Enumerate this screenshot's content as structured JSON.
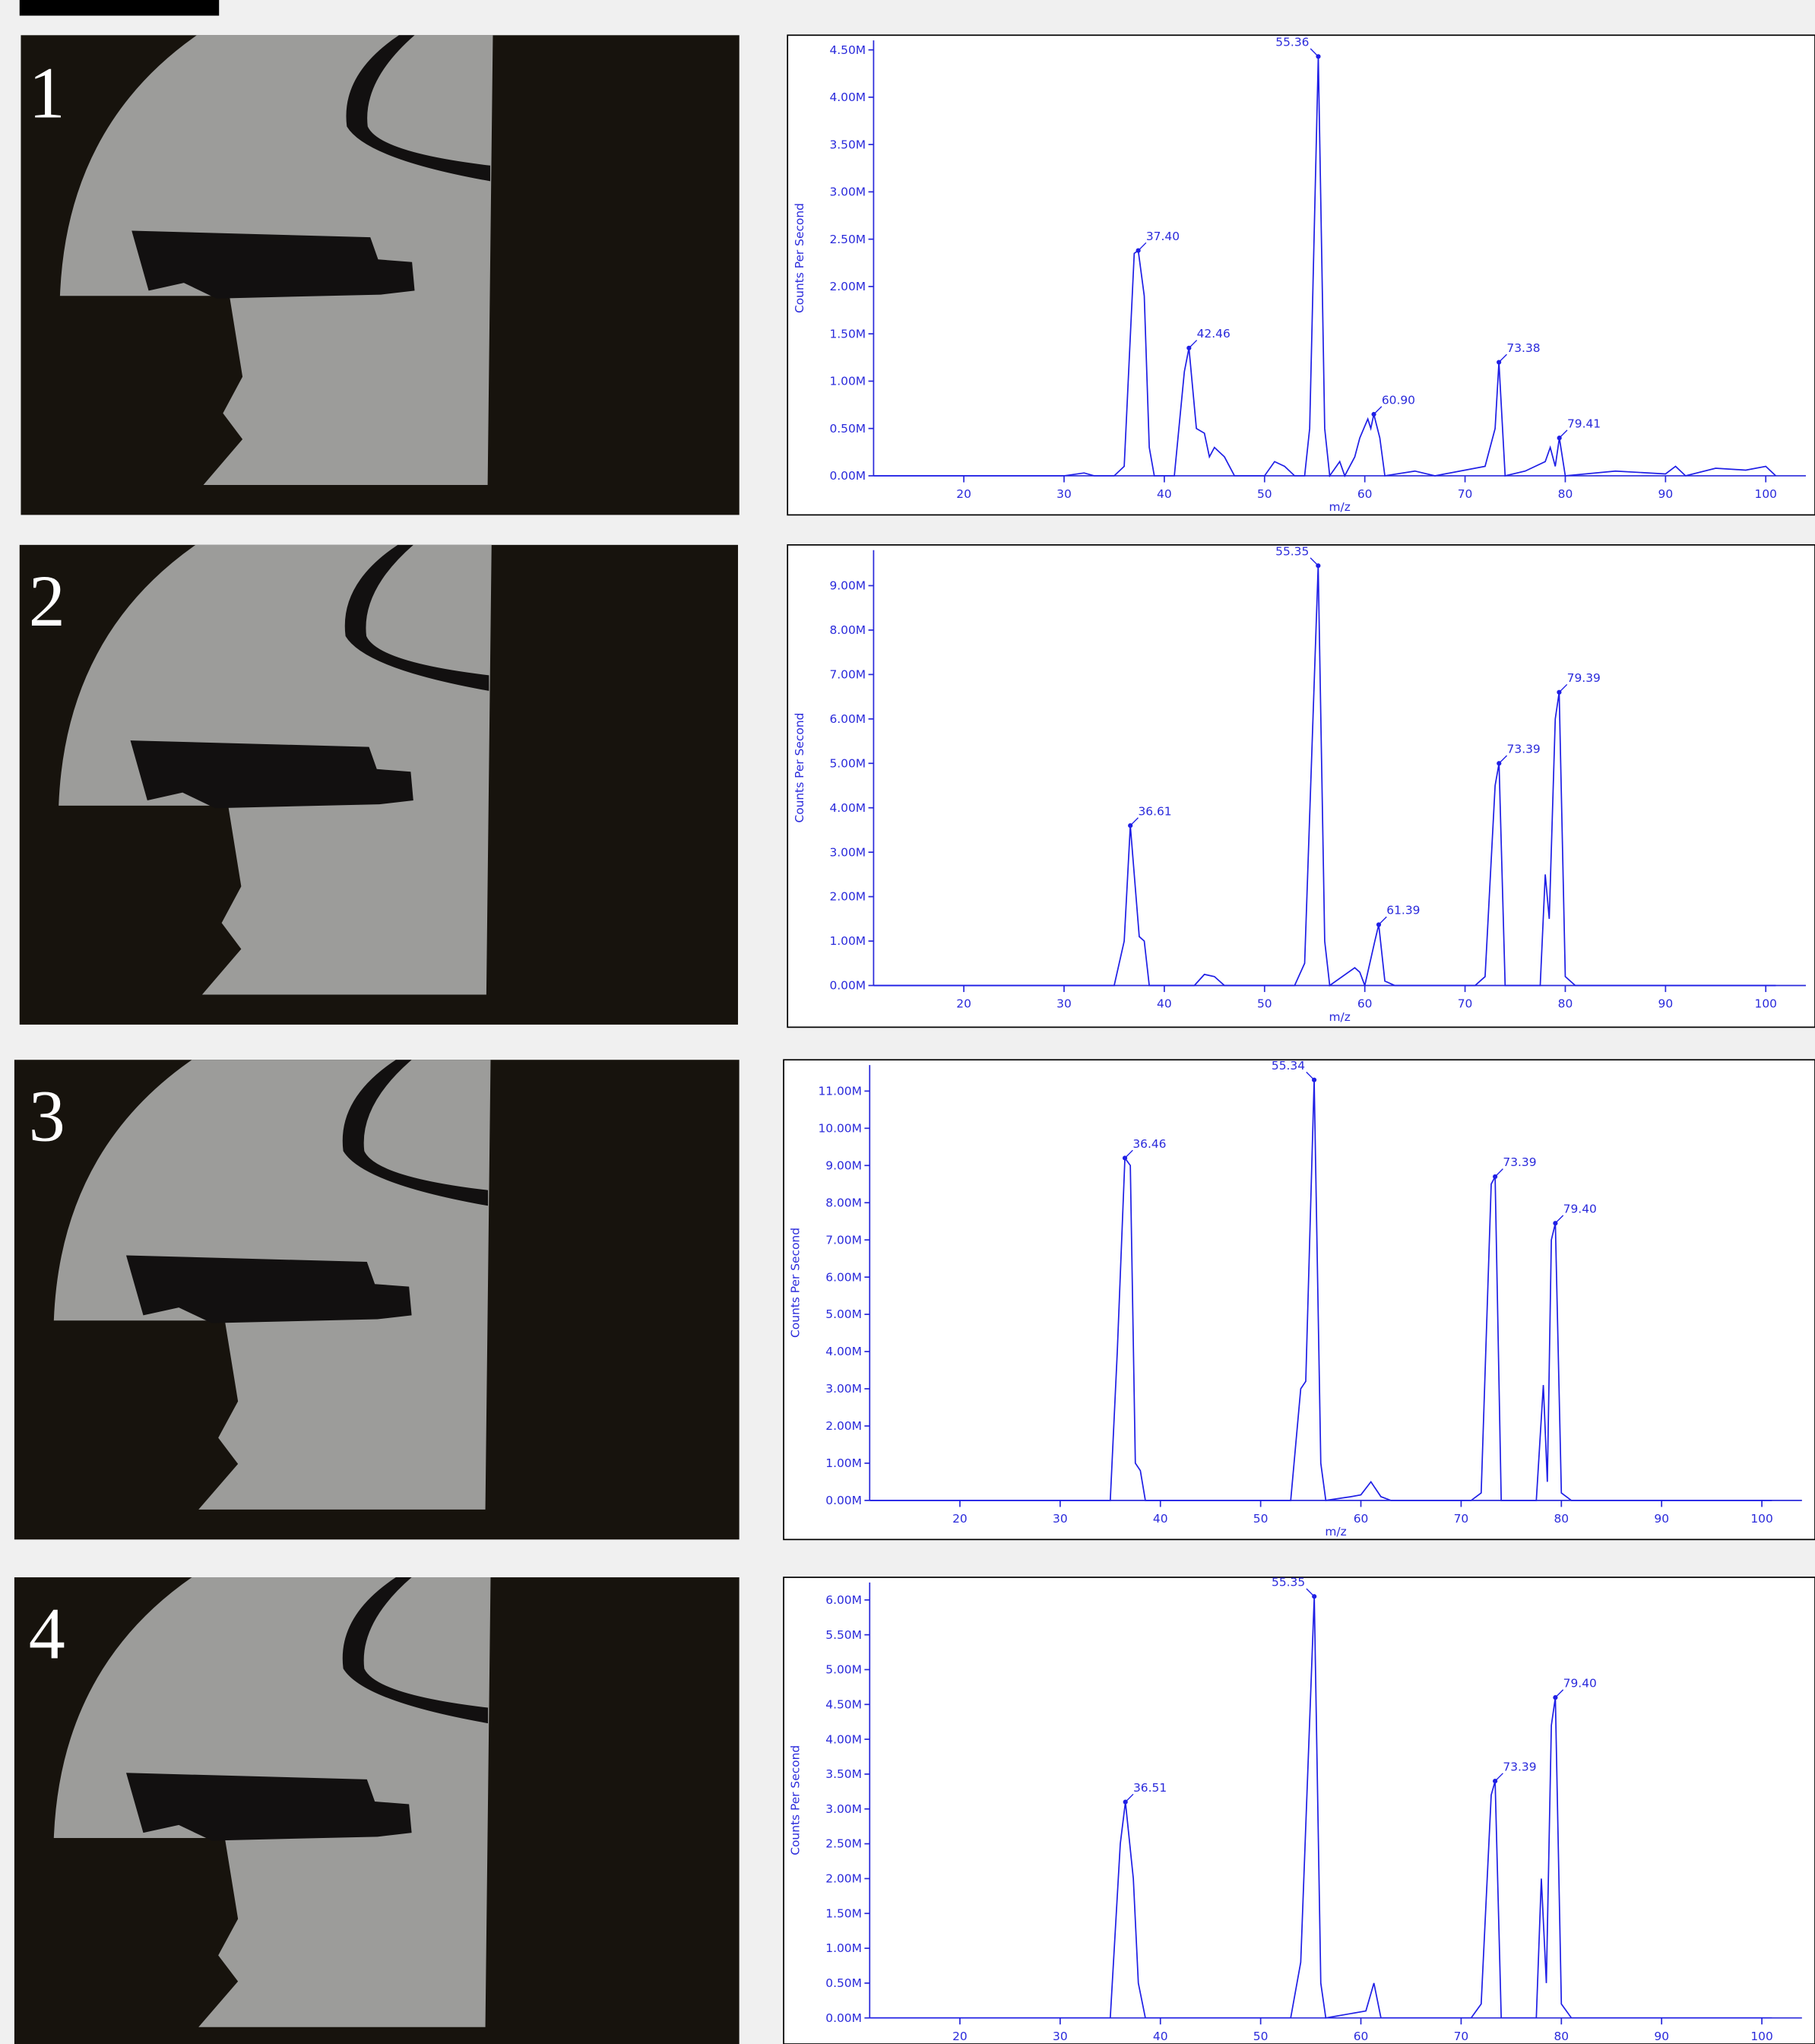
{
  "panels": [
    "1",
    "2",
    "3",
    "4"
  ],
  "chart_data": [
    {
      "type": "line",
      "ylabel": "Counts Per Second",
      "xlabel": "m/z",
      "color": "#1f1fe6",
      "xlim": [
        11,
        104
      ],
      "xticks": [
        20,
        30,
        40,
        50,
        60,
        70,
        80,
        90,
        100
      ],
      "ylim": [
        0,
        4600000
      ],
      "yticks": [
        {
          "value": 0,
          "label": "0.00M"
        },
        {
          "value": 500000,
          "label": "0.50M"
        },
        {
          "value": 1000000,
          "label": "1.00M"
        },
        {
          "value": 1500000,
          "label": "1.50M"
        },
        {
          "value": 2000000,
          "label": "2.00M"
        },
        {
          "value": 2500000,
          "label": "2.50M"
        },
        {
          "value": 3000000,
          "label": "3.00M"
        },
        {
          "value": 3500000,
          "label": "3.50M"
        },
        {
          "value": 4000000,
          "label": "4.00M"
        },
        {
          "value": 4500000,
          "label": "4.50M"
        }
      ],
      "x": [
        11,
        30,
        32,
        33,
        35,
        36,
        37,
        37.4,
        38,
        38.5,
        39,
        41,
        42,
        42.46,
        43.2,
        44,
        44.5,
        45,
        46,
        47,
        50,
        51,
        52,
        53,
        54,
        54.5,
        55.36,
        56,
        56.5,
        57.5,
        58,
        59,
        59.5,
        60.3,
        60.6,
        60.9,
        61.5,
        62,
        65,
        67,
        72,
        73,
        73.38,
        74,
        76,
        78,
        78.5,
        79,
        79.41,
        80,
        85,
        90,
        91,
        92,
        95,
        98,
        100,
        101
      ],
      "values": [
        0,
        0,
        30000,
        0,
        0,
        100000,
        2350000,
        2380000,
        1900000,
        300000,
        0,
        0,
        1100000,
        1350000,
        500000,
        450000,
        200000,
        300000,
        200000,
        0,
        0,
        150000,
        100000,
        0,
        0,
        500000,
        4430000,
        500000,
        0,
        150000,
        0,
        200000,
        400000,
        600000,
        500000,
        650000,
        400000,
        0,
        50000,
        0,
        100000,
        500000,
        1200000,
        0,
        50000,
        150000,
        300000,
        100000,
        400000,
        0,
        50000,
        20000,
        100000,
        0,
        80000,
        60000,
        100000,
        0
      ],
      "peaks": {
        "x": [
          37.4,
          42.46,
          55.36,
          60.9,
          73.38,
          79.41
        ],
        "labels": [
          "37.40",
          "42.46",
          "55.36",
          "60.90",
          "73.38",
          "79.41"
        ],
        "y": [
          2380000,
          1350000,
          4430000,
          650000,
          1200000,
          400000
        ]
      }
    },
    {
      "type": "line",
      "ylabel": "Counts Per Second",
      "xlabel": "m/z",
      "color": "#1f1fe6",
      "xlim": [
        11,
        104
      ],
      "xticks": [
        20,
        30,
        40,
        50,
        60,
        70,
        80,
        90,
        100
      ],
      "ylim": [
        0,
        9800000
      ],
      "yticks": [
        {
          "value": 0,
          "label": "0.00M"
        },
        {
          "value": 1000000,
          "label": "1.00M"
        },
        {
          "value": 2000000,
          "label": "2.00M"
        },
        {
          "value": 3000000,
          "label": "3.00M"
        },
        {
          "value": 4000000,
          "label": "4.00M"
        },
        {
          "value": 5000000,
          "label": "5.00M"
        },
        {
          "value": 6000000,
          "label": "6.00M"
        },
        {
          "value": 7000000,
          "label": "7.00M"
        },
        {
          "value": 8000000,
          "label": "8.00M"
        },
        {
          "value": 9000000,
          "label": "9.00M"
        }
      ],
      "x": [
        11,
        35,
        36,
        36.61,
        37.5,
        38,
        38.5,
        43,
        44,
        45,
        46,
        53,
        54,
        55.35,
        56,
        56.5,
        59,
        59.5,
        60,
        61,
        61.39,
        62,
        63,
        71,
        72,
        73,
        73.39,
        74,
        77.5,
        78,
        78.4,
        79,
        79.39,
        80,
        81,
        101
      ],
      "values": [
        0,
        0,
        1000000,
        3600000,
        1100000,
        1000000,
        0,
        0,
        250000,
        200000,
        0,
        0,
        500000,
        9450000,
        1000000,
        0,
        400000,
        300000,
        0,
        1000000,
        1370000,
        100000,
        0,
        0,
        200000,
        4500000,
        5000000,
        0,
        0,
        2500000,
        1500000,
        6000000,
        6600000,
        200000,
        0,
        0
      ],
      "peaks": {
        "x": [
          36.61,
          55.35,
          61.39,
          73.39,
          79.39
        ],
        "labels": [
          "36.61",
          "55.35",
          "61.39",
          "73.39",
          "79.39"
        ],
        "y": [
          3600000,
          9450000,
          1370000,
          5000000,
          6600000
        ]
      }
    },
    {
      "type": "line",
      "ylabel": "Counts Per Second",
      "xlabel": "m/z",
      "color": "#1f1fe6",
      "xlim": [
        11,
        104
      ],
      "xticks": [
        20,
        30,
        40,
        50,
        60,
        70,
        80,
        90,
        100
      ],
      "ylim": [
        0,
        11700000
      ],
      "yticks": [
        {
          "value": 0,
          "label": "0.00M"
        },
        {
          "value": 1000000,
          "label": "1.00M"
        },
        {
          "value": 2000000,
          "label": "2.00M"
        },
        {
          "value": 3000000,
          "label": "3.00M"
        },
        {
          "value": 4000000,
          "label": "4.00M"
        },
        {
          "value": 5000000,
          "label": "5.00M"
        },
        {
          "value": 6000000,
          "label": "6.00M"
        },
        {
          "value": 7000000,
          "label": "7.00M"
        },
        {
          "value": 8000000,
          "label": "8.00M"
        },
        {
          "value": 9000000,
          "label": "9.00M"
        },
        {
          "value": 10000000,
          "label": "10.00M"
        },
        {
          "value": 11000000,
          "label": "11.00M"
        }
      ],
      "x": [
        11,
        35,
        35.7,
        36.46,
        37,
        37.5,
        38,
        38.5,
        53,
        54,
        54.5,
        55.34,
        56,
        56.5,
        59,
        60,
        61,
        62,
        63,
        71,
        72,
        73,
        73.39,
        74,
        77.5,
        78.2,
        78.6,
        79,
        79.4,
        80,
        81,
        101
      ],
      "values": [
        0,
        0,
        4000000,
        9200000,
        9000000,
        1000000,
        800000,
        0,
        0,
        3000000,
        3200000,
        11300000,
        1000000,
        0,
        100000,
        150000,
        500000,
        100000,
        0,
        0,
        200000,
        8500000,
        8700000,
        0,
        0,
        3100000,
        500000,
        7000000,
        7450000,
        200000,
        0,
        0
      ],
      "peaks": {
        "x": [
          36.46,
          55.34,
          73.39,
          79.4
        ],
        "labels": [
          "36.46",
          "55.34",
          "73.39",
          "79.40"
        ],
        "y": [
          9200000,
          11300000,
          8700000,
          7450000
        ]
      }
    },
    {
      "type": "line",
      "ylabel": "Counts Per Second",
      "color": "#1f1fe6",
      "xlim": [
        11,
        104
      ],
      "xticks": [
        20,
        30,
        40,
        50,
        60,
        70,
        80,
        90,
        100
      ],
      "ylim": [
        0,
        6250000
      ],
      "yticks": [
        {
          "value": 0,
          "label": "0.00M"
        },
        {
          "value": 500000,
          "label": "0.50M"
        },
        {
          "value": 1000000,
          "label": "1.00M"
        },
        {
          "value": 1500000,
          "label": "1.50M"
        },
        {
          "value": 2000000,
          "label": "2.00M"
        },
        {
          "value": 2500000,
          "label": "2.50M"
        },
        {
          "value": 3000000,
          "label": "3.00M"
        },
        {
          "value": 3500000,
          "label": "3.50M"
        },
        {
          "value": 4000000,
          "label": "4.00M"
        },
        {
          "value": 4500000,
          "label": "4.50M"
        },
        {
          "value": 5000000,
          "label": "5.00M"
        },
        {
          "value": 5500000,
          "label": "5.50M"
        },
        {
          "value": 6000000,
          "label": "6.00M"
        }
      ],
      "x": [
        11,
        35,
        36,
        36.51,
        37.3,
        37.8,
        38.5,
        53,
        54,
        55.35,
        56,
        56.5,
        60.5,
        61.3,
        62,
        71,
        72,
        73,
        73.39,
        74,
        77.5,
        78,
        78.5,
        79,
        79.4,
        80,
        81,
        101
      ],
      "values": [
        0,
        0,
        2500000,
        3100000,
        2000000,
        500000,
        0,
        0,
        800000,
        6050000,
        500000,
        0,
        100000,
        500000,
        0,
        0,
        200000,
        3200000,
        3400000,
        0,
        0,
        2000000,
        500000,
        4200000,
        4600000,
        200000,
        0,
        0
      ],
      "peaks": {
        "x": [
          36.51,
          55.35,
          73.39,
          79.4
        ],
        "labels": [
          "36.51",
          "55.35",
          "73.39",
          "79.40"
        ],
        "y": [
          3100000,
          6050000,
          3400000,
          4600000
        ]
      }
    }
  ]
}
